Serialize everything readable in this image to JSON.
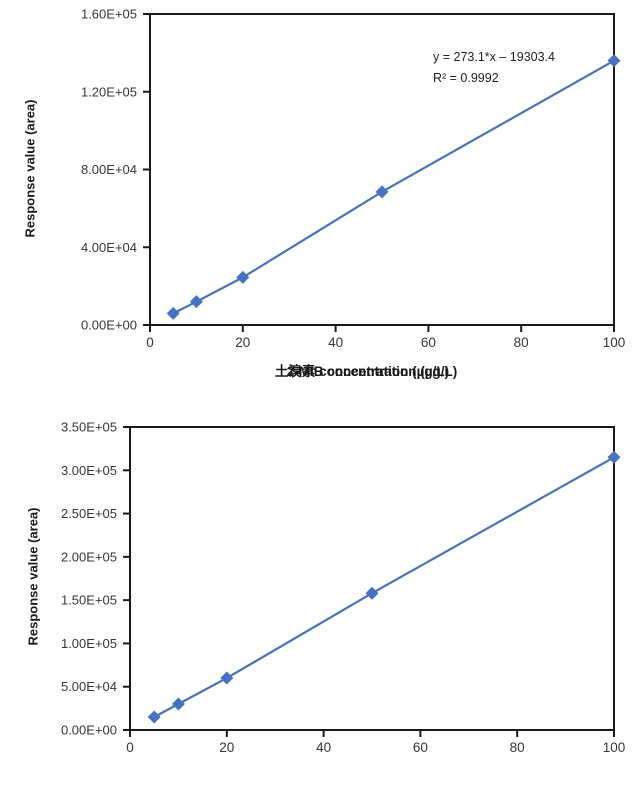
{
  "figure": {
    "background": "#ffffff",
    "series_color": "#4472C4",
    "axis_color": "#1a1a1a",
    "tick_label_color": "#363636"
  },
  "chart_data": [
    {
      "type": "line",
      "title": "",
      "xlabel": "土溴素 concentration (µg/L)",
      "ylabel": "Response value (area)",
      "x": [
        5,
        10,
        20,
        50,
        100
      ],
      "y": [
        6000,
        12000,
        24500,
        68500,
        136000
      ],
      "xlim": [
        0,
        100
      ],
      "ylim": [
        0,
        160000
      ],
      "xticks": [
        0,
        20,
        40,
        60,
        80,
        100
      ],
      "xtick_labels": [
        "0",
        "20",
        "40",
        "60",
        "80",
        "100"
      ],
      "yticks": [
        0,
        40000,
        80000,
        120000,
        160000
      ],
      "ytick_labels": [
        "0.00E+00",
        "4.00E+04",
        "8.00E+04",
        "1.20E+05",
        "1.60E+05"
      ],
      "grid": false,
      "legend": "none",
      "marker": "diamond",
      "annotation": {
        "equation": "y = 273.1*x – 19303.4",
        "r_squared": "R² = 0.9992"
      }
    },
    {
      "type": "line",
      "title": "",
      "xlabel": "2-MIB concentration (µg/L)",
      "ylabel": "Response value (area)",
      "x": [
        5,
        10,
        20,
        50,
        100
      ],
      "y": [
        15000,
        30000,
        60000,
        158000,
        315000
      ],
      "xlim": [
        0,
        100
      ],
      "ylim": [
        0,
        350000
      ],
      "xticks": [
        0,
        20,
        40,
        60,
        80,
        100
      ],
      "xtick_labels": [
        "0",
        "20",
        "40",
        "60",
        "80",
        "100"
      ],
      "yticks": [
        0,
        50000,
        100000,
        150000,
        200000,
        250000,
        300000,
        350000
      ],
      "ytick_labels": [
        "0.00E+00",
        "5.00E+04",
        "1.00E+05",
        "1.50E+05",
        "2.00E+05",
        "2.50E+05",
        "3.00E+05",
        "3.50E+05"
      ],
      "grid": false,
      "legend": "none",
      "marker": "diamond",
      "annotation": null
    }
  ]
}
